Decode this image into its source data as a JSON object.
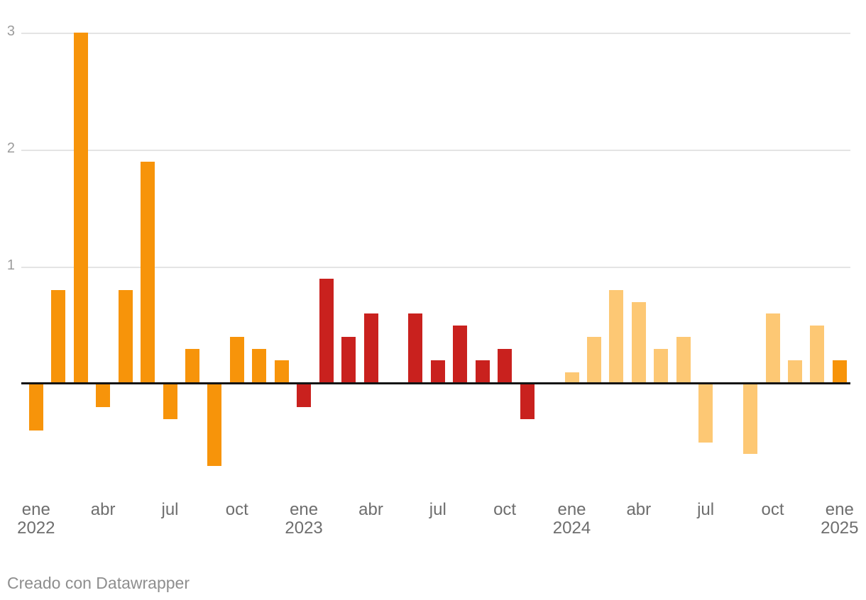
{
  "chart_data": {
    "type": "bar",
    "title": "",
    "categories": [
      "ene 2022",
      "feb 2022",
      "mar 2022",
      "abr 2022",
      "may 2022",
      "jun 2022",
      "jul 2022",
      "ago 2022",
      "sep 2022",
      "oct 2022",
      "nov 2022",
      "dic 2022",
      "ene 2023",
      "feb 2023",
      "mar 2023",
      "abr 2023",
      "may 2023",
      "jun 2023",
      "jul 2023",
      "ago 2023",
      "sep 2023",
      "oct 2023",
      "nov 2023",
      "dic 2023",
      "ene 2024",
      "feb 2024",
      "mar 2024",
      "abr 2024",
      "may 2024",
      "jun 2024",
      "jul 2024",
      "ago 2024",
      "sep 2024",
      "oct 2024",
      "nov 2024",
      "dic 2024",
      "ene 2025"
    ],
    "values": [
      -0.4,
      0.8,
      3.0,
      -0.2,
      0.8,
      1.9,
      -0.3,
      0.3,
      -0.7,
      0.4,
      0.3,
      0.2,
      -0.2,
      0.9,
      0.4,
      0.6,
      0.0,
      0.6,
      0.2,
      0.5,
      0.2,
      0.3,
      -0.3,
      0.0,
      0.1,
      0.4,
      0.8,
      0.7,
      0.3,
      0.4,
      -0.5,
      0.0,
      -0.6,
      0.6,
      0.2,
      0.5,
      0.2
    ],
    "bar_years": [
      2022,
      2022,
      2022,
      2022,
      2022,
      2022,
      2022,
      2022,
      2022,
      2022,
      2022,
      2022,
      2023,
      2023,
      2023,
      2023,
      2023,
      2023,
      2023,
      2023,
      2023,
      2023,
      2023,
      2023,
      2024,
      2024,
      2024,
      2024,
      2024,
      2024,
      2024,
      2024,
      2024,
      2024,
      2024,
      2024,
      2025
    ],
    "year_colors": {
      "2022": "#F7940A",
      "2023": "#C9211E",
      "2024": "#FDC874",
      "2025": "#F7940A"
    },
    "xlabel": "",
    "ylabel": "",
    "yticks": [
      1,
      2,
      3
    ],
    "ylim": [
      -0.85,
      3.1
    ],
    "grid": "horizontal",
    "legend_position": "none",
    "x_ticks": [
      {
        "month_index": 0,
        "line1": "ene",
        "line2": "2022"
      },
      {
        "month_index": 3,
        "line1": "abr",
        "line2": ""
      },
      {
        "month_index": 6,
        "line1": "jul",
        "line2": ""
      },
      {
        "month_index": 9,
        "line1": "oct",
        "line2": ""
      },
      {
        "month_index": 12,
        "line1": "ene",
        "line2": "2023"
      },
      {
        "month_index": 15,
        "line1": "abr",
        "line2": ""
      },
      {
        "month_index": 18,
        "line1": "jul",
        "line2": ""
      },
      {
        "month_index": 21,
        "line1": "oct",
        "line2": ""
      },
      {
        "month_index": 24,
        "line1": "ene",
        "line2": "2024"
      },
      {
        "month_index": 27,
        "line1": "abr",
        "line2": ""
      },
      {
        "month_index": 30,
        "line1": "jul",
        "line2": ""
      },
      {
        "month_index": 33,
        "line1": "oct",
        "line2": ""
      },
      {
        "month_index": 36,
        "line1": "ene",
        "line2": "2025"
      }
    ],
    "gridline_color": "#e4e4e4",
    "baseline_color": "#141414",
    "ytick_label_color": "#9c9c9c",
    "xtick_label_color": "#6e6e6e"
  },
  "footer": {
    "credit": "Creado con Datawrapper"
  }
}
